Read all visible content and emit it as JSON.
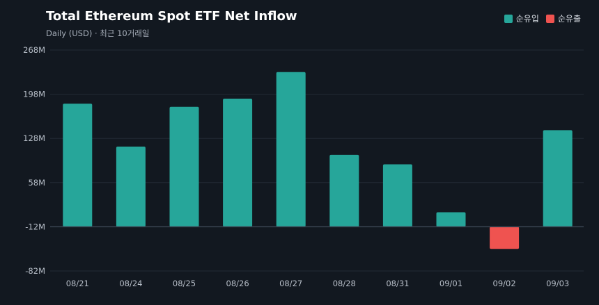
{
  "chart_data": {
    "type": "bar",
    "title": "Total Ethereum Spot ETF Net Inflow",
    "subtitle": "Daily (USD) · 최근 10거래일",
    "categories": [
      "08/21",
      "08/24",
      "08/25",
      "08/26",
      "08/27",
      "08/28",
      "08/31",
      "09/01",
      "09/02",
      "09/03"
    ],
    "values": [
      183,
      115,
      178,
      191,
      233,
      102,
      87,
      11,
      -47,
      141
    ],
    "ylim": [
      -82,
      268
    ],
    "yticks": [
      268,
      198,
      128,
      58,
      -12,
      -82
    ],
    "ytick_labels": [
      "268M",
      "198M",
      "128M",
      "58M",
      "-12M",
      "-82M"
    ],
    "xlabel": "",
    "ylabel": "",
    "baseline": -12,
    "grid": true,
    "legend": {
      "placement": "top-right",
      "items": [
        {
          "label": "순유입",
          "color": "#26a69a"
        },
        {
          "label": "순유출",
          "color": "#ef5350"
        }
      ]
    },
    "colors": {
      "positive": "#26a69a",
      "negative": "#ef5350",
      "background": "#121820",
      "grid": "#232b36"
    }
  }
}
